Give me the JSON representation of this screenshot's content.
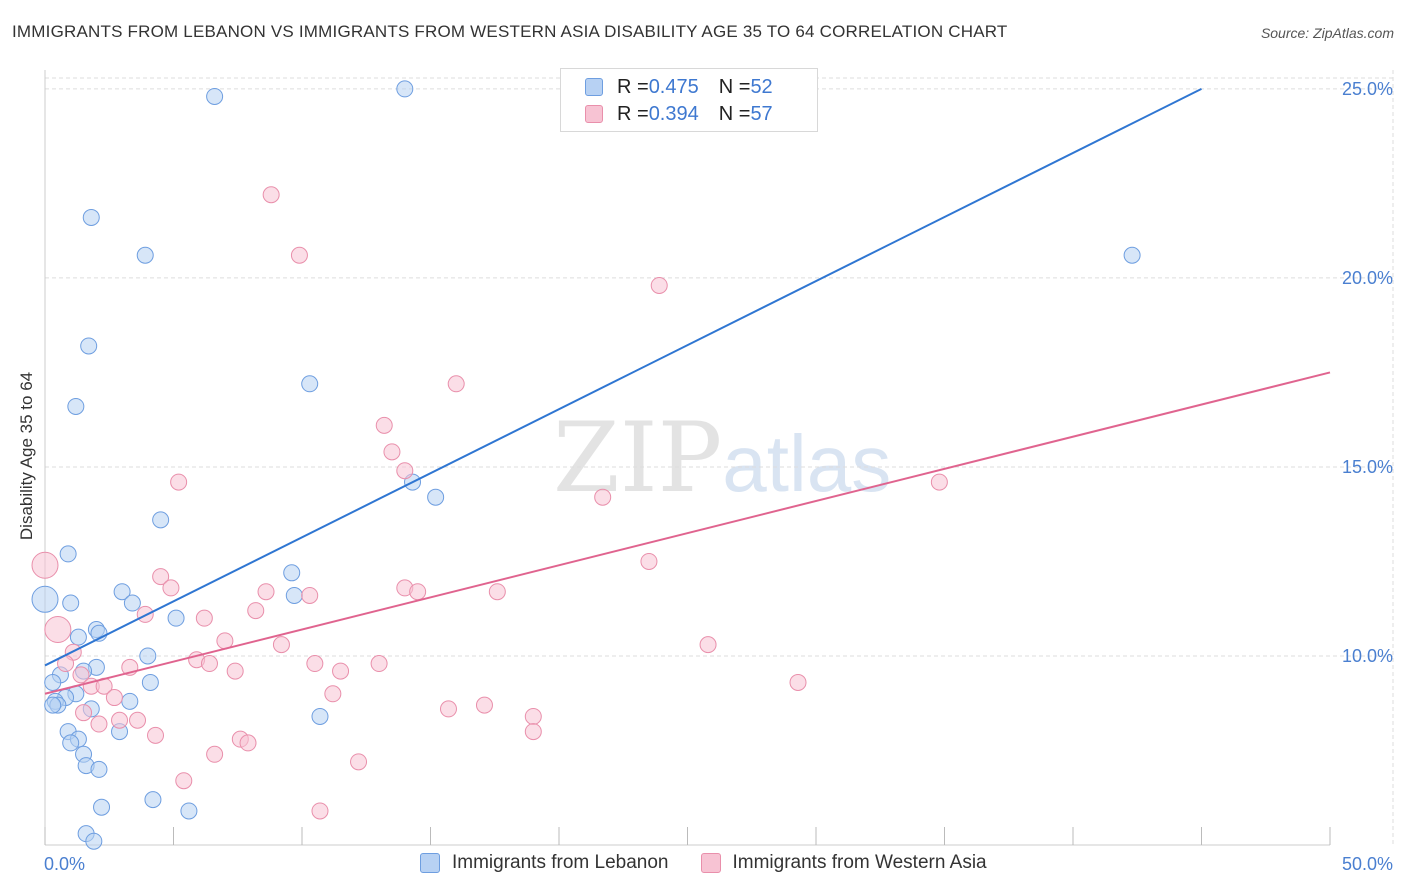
{
  "title": "IMMIGRANTS FROM LEBANON VS IMMIGRANTS FROM WESTERN ASIA DISABILITY AGE 35 TO 64 CORRELATION CHART",
  "source": "Source: ZipAtlas.com",
  "watermark": {
    "zip": "ZIP",
    "atlas": "atlas"
  },
  "legend": {
    "series1": {
      "r_label": "R = ",
      "r_value": "0.475",
      "n_label": "N = ",
      "n_value": "52"
    },
    "series2": {
      "r_label": "R = ",
      "r_value": "0.394",
      "n_label": "N = ",
      "n_value": "57"
    }
  },
  "colors": {
    "blue_fill": "#b7d1f3",
    "blue_stroke": "#6e9ee0",
    "blue_line": "#2f76d2",
    "pink_fill": "#f7c3d3",
    "pink_stroke": "#e98fab",
    "pink_line": "#e0648f",
    "grid": "#dddddd",
    "tick_text": "#4a7fd0"
  },
  "chart_data": {
    "type": "scatter",
    "title": "IMMIGRANTS FROM LEBANON VS IMMIGRANTS FROM WESTERN ASIA DISABILITY AGE 35 TO 64 CORRELATION CHART",
    "xlabel": "",
    "ylabel": "Disability Age 35 to 64",
    "xlim": [
      0,
      50
    ],
    "ylim": [
      5,
      25.5
    ],
    "x_tick_labels": [
      "0.0%",
      "50.0%"
    ],
    "y_ticks": [
      10,
      15,
      20,
      25
    ],
    "y_tick_labels": [
      "10.0%",
      "15.0%",
      "20.0%",
      "25.0%"
    ],
    "grid": true,
    "legend_position": "top-center",
    "series": [
      {
        "name": "Immigrants from Lebanon",
        "color": "blue",
        "R": 0.475,
        "N": 52,
        "trendline": {
          "x0": 0,
          "y0": 9.75,
          "x1": 45,
          "y1": 25.0
        },
        "points": [
          {
            "x": 6.6,
            "y": 24.8
          },
          {
            "x": 14.0,
            "y": 25.0
          },
          {
            "x": 1.8,
            "y": 21.6
          },
          {
            "x": 3.9,
            "y": 20.6
          },
          {
            "x": 1.7,
            "y": 18.2
          },
          {
            "x": 10.3,
            "y": 17.2
          },
          {
            "x": 1.2,
            "y": 16.6
          },
          {
            "x": 14.3,
            "y": 14.6
          },
          {
            "x": 15.2,
            "y": 14.2
          },
          {
            "x": 4.5,
            "y": 13.6
          },
          {
            "x": 0.9,
            "y": 12.7
          },
          {
            "x": 9.6,
            "y": 12.2
          },
          {
            "x": 3.0,
            "y": 11.7
          },
          {
            "x": 9.7,
            "y": 11.6
          },
          {
            "x": 0.0,
            "y": 11.5,
            "size": "large"
          },
          {
            "x": 1.0,
            "y": 11.4
          },
          {
            "x": 3.4,
            "y": 11.4
          },
          {
            "x": 5.1,
            "y": 11.0
          },
          {
            "x": 2.0,
            "y": 10.7
          },
          {
            "x": 2.1,
            "y": 10.6
          },
          {
            "x": 1.3,
            "y": 10.5
          },
          {
            "x": 4.0,
            "y": 10.0
          },
          {
            "x": 2.0,
            "y": 9.7
          },
          {
            "x": 1.5,
            "y": 9.6
          },
          {
            "x": 0.6,
            "y": 9.5
          },
          {
            "x": 0.3,
            "y": 9.3
          },
          {
            "x": 4.1,
            "y": 9.3
          },
          {
            "x": 1.2,
            "y": 9.0
          },
          {
            "x": 0.8,
            "y": 8.9
          },
          {
            "x": 0.4,
            "y": 8.8
          },
          {
            "x": 3.3,
            "y": 8.8
          },
          {
            "x": 0.5,
            "y": 8.7
          },
          {
            "x": 0.3,
            "y": 8.7
          },
          {
            "x": 1.8,
            "y": 8.6
          },
          {
            "x": 10.7,
            "y": 8.4
          },
          {
            "x": 2.9,
            "y": 8.0
          },
          {
            "x": 0.9,
            "y": 8.0
          },
          {
            "x": 1.3,
            "y": 7.8
          },
          {
            "x": 1.0,
            "y": 7.7
          },
          {
            "x": 1.5,
            "y": 7.4
          },
          {
            "x": 1.6,
            "y": 7.1
          },
          {
            "x": 2.1,
            "y": 7.0
          },
          {
            "x": 4.2,
            "y": 6.2
          },
          {
            "x": 2.2,
            "y": 6.0
          },
          {
            "x": 5.6,
            "y": 5.9
          },
          {
            "x": 1.6,
            "y": 5.3
          },
          {
            "x": 1.9,
            "y": 5.1
          },
          {
            "x": 42.3,
            "y": 20.6
          }
        ]
      },
      {
        "name": "Immigrants from Western Asia",
        "color": "pink",
        "R": 0.394,
        "N": 57,
        "trendline": {
          "x0": 0,
          "y0": 9.0,
          "x1": 50,
          "y1": 17.5
        },
        "points": [
          {
            "x": 8.8,
            "y": 22.2
          },
          {
            "x": 9.9,
            "y": 20.6
          },
          {
            "x": 23.9,
            "y": 19.8
          },
          {
            "x": 16.0,
            "y": 17.2
          },
          {
            "x": 13.2,
            "y": 16.1
          },
          {
            "x": 13.5,
            "y": 15.4
          },
          {
            "x": 14.0,
            "y": 14.9
          },
          {
            "x": 5.2,
            "y": 14.6
          },
          {
            "x": 34.8,
            "y": 14.6
          },
          {
            "x": 21.7,
            "y": 14.2
          },
          {
            "x": 23.5,
            "y": 12.5
          },
          {
            "x": 0.0,
            "y": 12.4,
            "size": "large"
          },
          {
            "x": 4.5,
            "y": 12.1
          },
          {
            "x": 4.9,
            "y": 11.8
          },
          {
            "x": 8.6,
            "y": 11.7
          },
          {
            "x": 10.3,
            "y": 11.6
          },
          {
            "x": 14.0,
            "y": 11.8
          },
          {
            "x": 14.5,
            "y": 11.7
          },
          {
            "x": 17.6,
            "y": 11.7
          },
          {
            "x": 8.2,
            "y": 11.2
          },
          {
            "x": 3.9,
            "y": 11.1
          },
          {
            "x": 6.2,
            "y": 11.0
          },
          {
            "x": 0.5,
            "y": 10.7,
            "size": "large"
          },
          {
            "x": 7.0,
            "y": 10.4
          },
          {
            "x": 9.2,
            "y": 10.3
          },
          {
            "x": 25.8,
            "y": 10.3
          },
          {
            "x": 1.1,
            "y": 10.1
          },
          {
            "x": 5.9,
            "y": 9.9
          },
          {
            "x": 6.4,
            "y": 9.8
          },
          {
            "x": 0.8,
            "y": 9.8
          },
          {
            "x": 10.5,
            "y": 9.8
          },
          {
            "x": 13.0,
            "y": 9.8
          },
          {
            "x": 3.3,
            "y": 9.7
          },
          {
            "x": 7.4,
            "y": 9.6
          },
          {
            "x": 11.5,
            "y": 9.6
          },
          {
            "x": 1.4,
            "y": 9.5
          },
          {
            "x": 29.3,
            "y": 9.3
          },
          {
            "x": 1.8,
            "y": 9.2
          },
          {
            "x": 2.3,
            "y": 9.2
          },
          {
            "x": 11.2,
            "y": 9.0
          },
          {
            "x": 2.7,
            "y": 8.9
          },
          {
            "x": 17.1,
            "y": 8.7
          },
          {
            "x": 15.7,
            "y": 8.6
          },
          {
            "x": 1.5,
            "y": 8.5
          },
          {
            "x": 19.0,
            "y": 8.4
          },
          {
            "x": 2.9,
            "y": 8.3
          },
          {
            "x": 3.6,
            "y": 8.3
          },
          {
            "x": 2.1,
            "y": 8.2
          },
          {
            "x": 19.0,
            "y": 8.0
          },
          {
            "x": 4.3,
            "y": 7.9
          },
          {
            "x": 7.6,
            "y": 7.8
          },
          {
            "x": 7.9,
            "y": 7.7
          },
          {
            "x": 6.6,
            "y": 7.4
          },
          {
            "x": 12.2,
            "y": 7.2
          },
          {
            "x": 5.4,
            "y": 6.7
          },
          {
            "x": 10.7,
            "y": 5.9
          }
        ]
      }
    ]
  }
}
